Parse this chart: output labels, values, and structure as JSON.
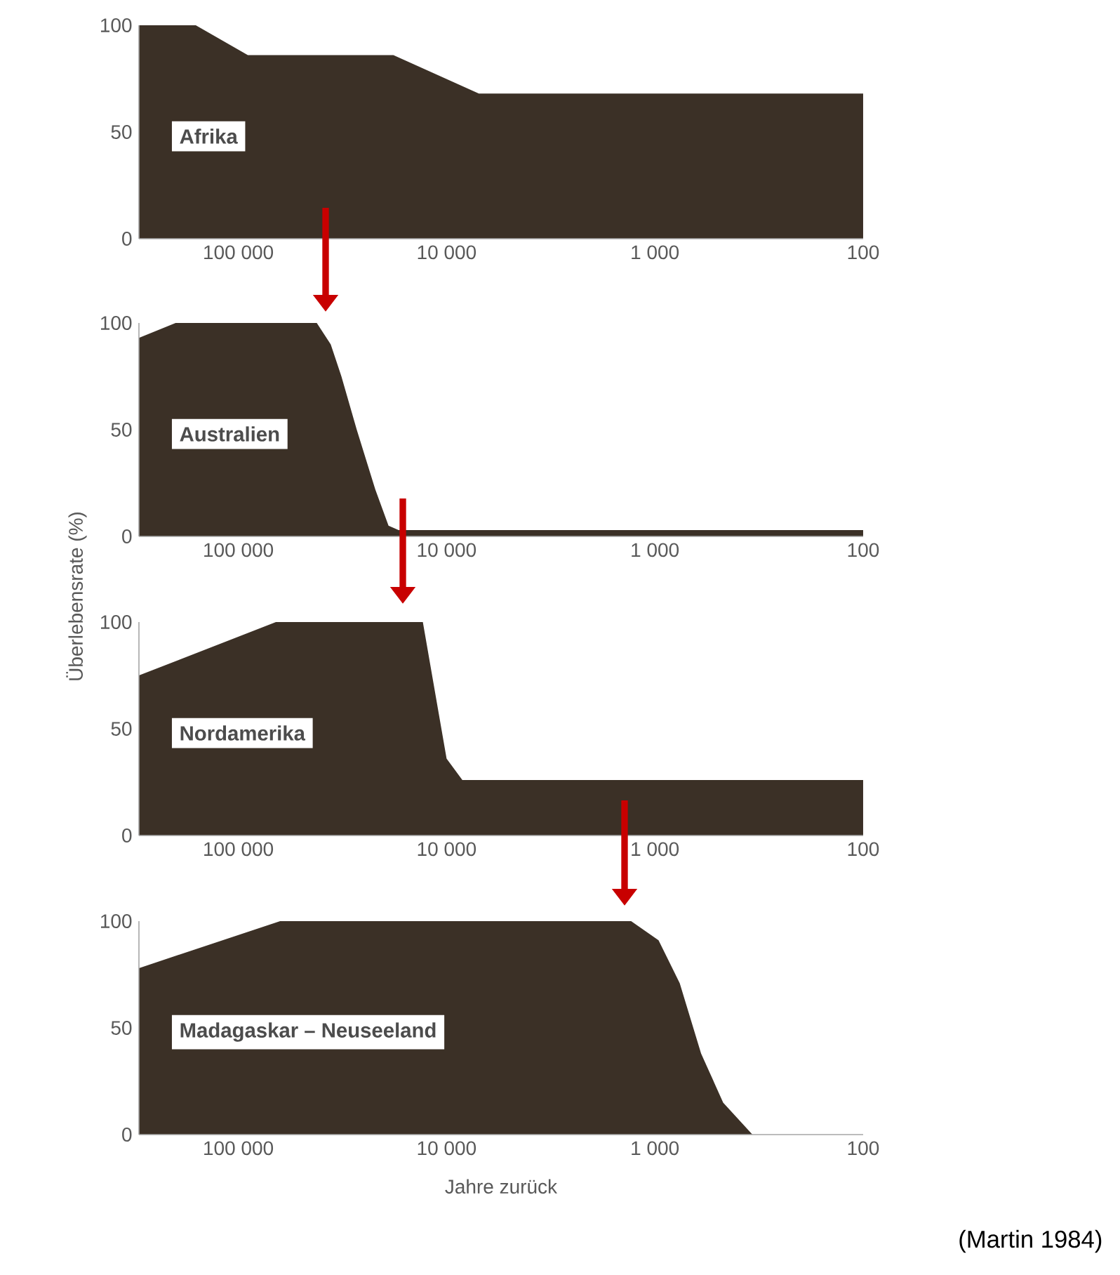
{
  "chart_data": [
    {
      "type": "area",
      "log": "x",
      "xlim": [
        300000,
        100
      ],
      "ylim": [
        0,
        100
      ],
      "xticks": [
        {
          "value": 100000,
          "label": "100 000"
        },
        {
          "value": 10000,
          "label": "10 000"
        },
        {
          "value": 1000,
          "label": "1 000"
        },
        100
      ],
      "yticks": [
        0,
        50,
        100
      ],
      "series": [
        {
          "name": "Afrika",
          "color": "#3b3026",
          "x": [
            300000,
            160000,
            90000,
            18000,
            7000,
            100
          ],
          "values": [
            100,
            100,
            86,
            86,
            68,
            68
          ]
        }
      ]
    },
    {
      "type": "area",
      "log": "x",
      "xlim": [
        300000,
        100
      ],
      "ylim": [
        0,
        100
      ],
      "xticks": [
        {
          "value": 100000,
          "label": "100 000"
        },
        {
          "value": 10000,
          "label": "10 000"
        },
        {
          "value": 1000,
          "label": "1 000"
        },
        100
      ],
      "yticks": [
        0,
        50,
        100
      ],
      "series": [
        {
          "name": "Australien",
          "color": "#3b3026",
          "x": [
            300000,
            200000,
            42000,
            36000,
            32000,
            27000,
            22000,
            19000,
            17000,
            100
          ],
          "values": [
            93,
            100,
            100,
            90,
            75,
            50,
            22,
            5,
            3,
            3
          ]
        }
      ]
    },
    {
      "type": "area",
      "log": "x",
      "xlim": [
        300000,
        100
      ],
      "ylim": [
        0,
        100
      ],
      "xticks": [
        {
          "value": 100000,
          "label": "100 000"
        },
        {
          "value": 10000,
          "label": "10 000"
        },
        {
          "value": 1000,
          "label": "1 000"
        },
        100
      ],
      "yticks": [
        0,
        50,
        100
      ],
      "ylabel": "Überlebensrate (%)",
      "series": [
        {
          "name": "Nordamerika",
          "color": "#3b3026",
          "x": [
            300000,
            66000,
            13000,
            10000,
            8400,
            100
          ],
          "values": [
            75,
            100,
            100,
            36,
            26,
            26
          ]
        }
      ]
    },
    {
      "type": "area",
      "log": "x",
      "xlim": [
        300000,
        100
      ],
      "ylim": [
        0,
        100
      ],
      "xticks": [
        {
          "value": 100000,
          "label": "100 000"
        },
        {
          "value": 10000,
          "label": "10 000"
        },
        {
          "value": 1000,
          "label": "1 000"
        },
        100
      ],
      "yticks": [
        0,
        50,
        100
      ],
      "xlabel": "Jahre zurück",
      "annotations": [
        "(Martin 1984)"
      ],
      "series": [
        {
          "name": "Madagaskar – Neuseeland",
          "color": "#3b3026",
          "x": [
            300000,
            63000,
            1300,
            960,
            760,
            600,
            470,
            340,
            100
          ],
          "values": [
            78,
            100,
            100,
            91,
            71,
            38,
            15,
            0,
            0
          ]
        }
      ]
    }
  ]
}
